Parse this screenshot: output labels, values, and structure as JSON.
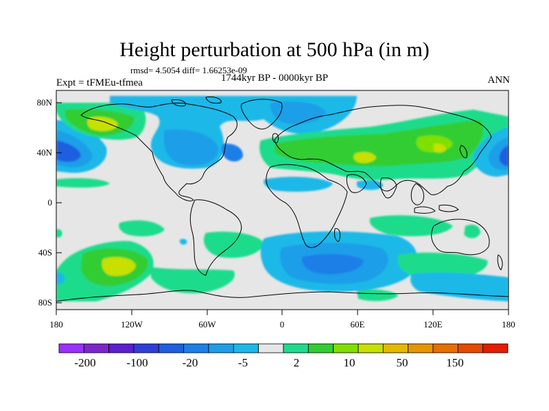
{
  "title": "Height perturbation at 500 hPa (in m)",
  "stats_line": "rmsd= 4.5054 diff= 1.66253e-09",
  "experiment_label": "Expt = tFMEu-tfmea",
  "period_label": "1744kyr BP - 0000kyr BP",
  "season_label": "ANN",
  "lat_ticks": [
    "80N",
    "40N",
    "0",
    "40S",
    "80S"
  ],
  "lon_ticks": [
    "180",
    "120W",
    "60W",
    "0",
    "60E",
    "120E",
    "180"
  ],
  "colorbar": {
    "colors": [
      "#9b30ff",
      "#7d26cd",
      "#5b1fd0",
      "#2e3fd8",
      "#1f5fe0",
      "#1f7fe8",
      "#1e9ee8",
      "#1ab8e8",
      "#e6e6e6",
      "#1fdc8c",
      "#32cd32",
      "#7fe000",
      "#c8e000",
      "#e6b800",
      "#e69500",
      "#e66f00",
      "#e64a00",
      "#e61a00"
    ],
    "labels": [
      "-200",
      "-100",
      "-20",
      "-5",
      "2",
      "10",
      "50",
      "150"
    ]
  },
  "palette": {
    "neutral": "#e6e6e6",
    "lightblue": "#1ab8e8",
    "midblue": "#1e9ee8",
    "blue": "#1f7fe8",
    "deepblue": "#1f5fe0",
    "teal": "#1fdc8c",
    "green": "#32cd32",
    "lime": "#7fe000",
    "yellowgreen": "#c8e000",
    "coast": "#000000"
  }
}
